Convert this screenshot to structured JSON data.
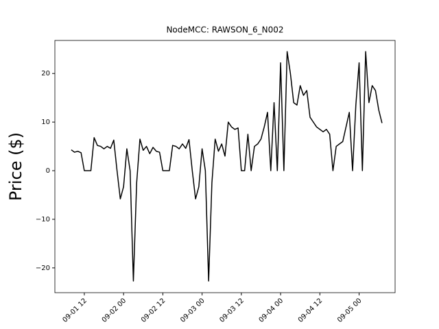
{
  "chart_data": {
    "type": "line",
    "title": "NodeMCC: RAWSON_6_N002",
    "y_label": "Price ($)",
    "x": [
      "09-01 08",
      "09-01 09",
      "09-01 10",
      "09-01 11",
      "09-01 12",
      "09-01 13",
      "09-01 14",
      "09-01 15",
      "09-01 16",
      "09-01 17",
      "09-01 18",
      "09-01 19",
      "09-01 20",
      "09-01 21",
      "09-01 22",
      "09-01 23",
      "09-02 00",
      "09-02 01",
      "09-02 02",
      "09-02 03",
      "09-02 04",
      "09-02 05",
      "09-02 06",
      "09-02 07",
      "09-02 08",
      "09-02 09",
      "09-02 10",
      "09-02 11",
      "09-02 12",
      "09-02 13",
      "09-02 14",
      "09-02 15",
      "09-02 16",
      "09-02 17",
      "09-02 18",
      "09-02 19",
      "09-02 20",
      "09-02 21",
      "09-02 22",
      "09-02 23",
      "09-03 00",
      "09-03 01",
      "09-03 02",
      "09-03 03",
      "09-03 04",
      "09-03 05",
      "09-03 06",
      "09-03 07",
      "09-03 08",
      "09-03 09",
      "09-03 10",
      "09-03 11",
      "09-03 12",
      "09-03 13",
      "09-03 14",
      "09-03 15",
      "09-03 16",
      "09-03 17",
      "09-03 18",
      "09-03 19",
      "09-03 20",
      "09-03 21",
      "09-03 22",
      "09-03 23",
      "09-04 00",
      "09-04 01",
      "09-04 02",
      "09-04 03",
      "09-04 04",
      "09-04 05",
      "09-04 06",
      "09-04 07",
      "09-04 08",
      "09-04 09",
      "09-04 10",
      "09-04 11",
      "09-04 12",
      "09-04 13",
      "09-04 14",
      "09-04 15",
      "09-04 16",
      "09-04 17",
      "09-04 18",
      "09-04 19",
      "09-04 20",
      "09-04 21",
      "09-04 22",
      "09-04 23",
      "09-05 00",
      "09-05 01",
      "09-05 02",
      "09-05 03",
      "09-05 04",
      "09-05 05",
      "09-05 06",
      "09-05 07"
    ],
    "series": [
      {
        "name": "RAWSON_6_N002",
        "color": "#000000",
        "values": [
          4.3,
          3.8,
          4.0,
          3.7,
          0,
          0,
          0,
          6.8,
          5.2,
          5.0,
          4.5,
          5.0,
          4.6,
          6.3,
          0,
          -5.8,
          -3.3,
          4.5,
          0,
          -22.7,
          -2.5,
          6.5,
          4.2,
          5.0,
          3.5,
          4.8,
          4.0,
          3.8,
          0,
          0,
          0,
          5.2,
          5.0,
          4.5,
          5.5,
          4.6,
          6.4,
          0,
          -5.8,
          -3.3,
          4.5,
          0,
          -22.7,
          -2.5,
          6.5,
          4.0,
          5.5,
          3.0,
          10.0,
          9.0,
          8.5,
          8.8,
          0,
          0,
          7.5,
          0,
          5.0,
          5.5,
          6.5,
          9.0,
          12.0,
          0,
          14.0,
          0,
          22.2,
          0,
          24.5,
          20,
          14,
          13.5,
          17.5,
          15.5,
          16.5,
          11,
          10,
          9,
          8.5,
          8,
          8.5,
          7.5,
          0,
          5.0,
          5.5,
          6.0,
          9.0,
          12.0,
          0,
          13.5,
          22.2,
          0,
          24.5,
          14,
          17.5,
          16.5,
          12.5,
          9.8
        ]
      }
    ],
    "xlim": [
      "09-01 03",
      "09-05 11"
    ],
    "xticks": [
      "09-01 12",
      "09-02 00",
      "09-02 12",
      "09-03 00",
      "09-03 12",
      "09-04 00",
      "09-04 12",
      "09-05 00"
    ],
    "ylim": [
      -25.1,
      26.8
    ],
    "yticks": [
      {
        "value": -20,
        "label": "−20"
      },
      {
        "value": -10,
        "label": "−10"
      },
      0,
      10,
      20
    ]
  }
}
